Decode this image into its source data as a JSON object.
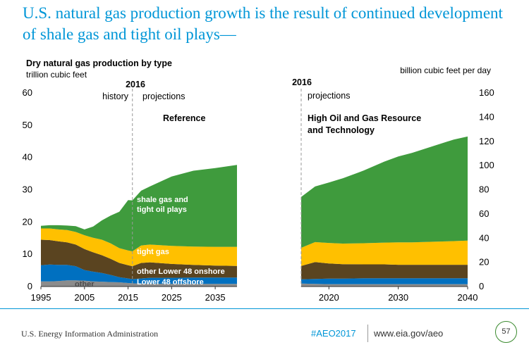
{
  "slide": {
    "title": "U.S. natural gas production growth is the result of continued development of shale gas and tight oil plays—"
  },
  "footer": {
    "source": "U.S. Energy Information Administration",
    "hashtag": "#AEO2017",
    "url": "www.eia.gov/aeo",
    "page_number": "57"
  },
  "colors": {
    "other": "#8c8c8c",
    "lower48_offshore": "#0070c0",
    "other_lower48_onshore": "#5a4420",
    "tight_gas": "#ffc000",
    "shale_gas_tight_oil": "#3f9b3d"
  },
  "chart_data": [
    {
      "type": "area",
      "stacked": true,
      "title": "Dry natural gas production by type",
      "ylabel": "trillion cubic feet",
      "ylim": [
        0,
        60
      ],
      "yticks": [
        0,
        10,
        20,
        30,
        40,
        50,
        60
      ],
      "xlim": [
        1995,
        2040
      ],
      "xticks": [
        1995,
        2005,
        2015,
        2025,
        2035
      ],
      "grid": false,
      "divider_year": "2016",
      "history_label": "history",
      "projection_label": "projections",
      "case_label": "Reference",
      "x": [
        1995,
        1997,
        1999,
        2001,
        2003,
        2005,
        2007,
        2009,
        2011,
        2013,
        2015,
        2016,
        2018,
        2020,
        2025,
        2030,
        2035,
        2040
      ],
      "series": [
        {
          "name": "other",
          "color_key": "other",
          "values": [
            1.6,
            1.6,
            1.7,
            1.9,
            1.9,
            1.8,
            1.6,
            1.5,
            1.4,
            1.3,
            1.1,
            1.0,
            0.9,
            0.9,
            0.8,
            0.8,
            0.8,
            0.8
          ]
        },
        {
          "name": "Lower 48 offshore",
          "color_key": "lower48_offshore",
          "values": [
            5.0,
            5.2,
            5.0,
            4.8,
            4.4,
            3.3,
            3.0,
            2.7,
            2.2,
            1.6,
            1.4,
            1.3,
            1.6,
            1.8,
            1.9,
            2.0,
            2.0,
            2.0
          ]
        },
        {
          "name": "other Lower 48 onshore",
          "color_key": "other_lower48_onshore",
          "values": [
            7.9,
            7.6,
            7.3,
            7.0,
            6.7,
            6.5,
            6.0,
            5.5,
            5.0,
            4.4,
            4.1,
            4.0,
            4.8,
            4.8,
            4.3,
            3.9,
            3.7,
            3.6
          ]
        },
        {
          "name": "tight gas",
          "color_key": "tight_gas",
          "values": [
            3.5,
            3.6,
            3.7,
            3.8,
            3.9,
            4.3,
            4.5,
            4.8,
            4.8,
            4.6,
            4.6,
            4.6,
            5.4,
            5.5,
            5.6,
            5.7,
            5.8,
            5.9
          ]
        },
        {
          "name": "shale gas and tight oil plays",
          "color_key": "shale_gas_tight_oil",
          "values": [
            0.8,
            1.0,
            1.3,
            1.4,
            1.8,
            1.8,
            3.5,
            6.0,
            8.6,
            11.3,
            15.6,
            15.8,
            17.0,
            18.0,
            21.5,
            23.5,
            24.4,
            25.4
          ]
        }
      ],
      "labels": {
        "shale": "shale gas and tight oil plays",
        "tight": "tight gas",
        "onshore": "other Lower 48 onshore",
        "offshore": "Lower 48 offshore",
        "other": "other"
      }
    },
    {
      "type": "area",
      "stacked": true,
      "ylabel": "billion cubic feet per day",
      "ylim": [
        0,
        160
      ],
      "yticks": [
        0,
        20,
        40,
        60,
        80,
        100,
        120,
        140,
        160
      ],
      "xlim": [
        2016,
        2040
      ],
      "xticks": [
        2020,
        2030,
        2040
      ],
      "grid": false,
      "divider_year": "2016",
      "projection_label": "projections",
      "case_label": "High Oil and Gas Resource and Technology",
      "x": [
        2016,
        2018,
        2020,
        2022,
        2025,
        2028,
        2030,
        2032,
        2035,
        2038,
        2040
      ],
      "series": [
        {
          "name": "other",
          "color_key": "other",
          "values": [
            2.5,
            2.2,
            2.0,
            2.0,
            2.0,
            2.0,
            2.0,
            2.0,
            2.0,
            2.0,
            2.0
          ]
        },
        {
          "name": "Lower 48 offshore",
          "color_key": "lower48_offshore",
          "values": [
            3.5,
            4.0,
            4.5,
            4.5,
            4.8,
            4.8,
            4.8,
            4.8,
            4.8,
            4.8,
            4.8
          ]
        },
        {
          "name": "other Lower 48 onshore",
          "color_key": "other_lower48_onshore",
          "values": [
            11.0,
            14.0,
            12.5,
            12.0,
            11.5,
            11.5,
            11.2,
            11.2,
            11.2,
            11.2,
            11.2
          ]
        },
        {
          "name": "tight gas",
          "color_key": "tight_gas",
          "values": [
            15.0,
            16.5,
            17.0,
            17.0,
            17.5,
            18.0,
            18.5,
            18.5,
            19.0,
            19.5,
            20.0
          ]
        },
        {
          "name": "shale gas and tight oil plays",
          "color_key": "shale_gas_tight_oil",
          "values": [
            42.0,
            46.0,
            50.0,
            54.0,
            60.0,
            67.0,
            71.0,
            74.0,
            79.0,
            84.0,
            86.0
          ]
        }
      ]
    }
  ]
}
